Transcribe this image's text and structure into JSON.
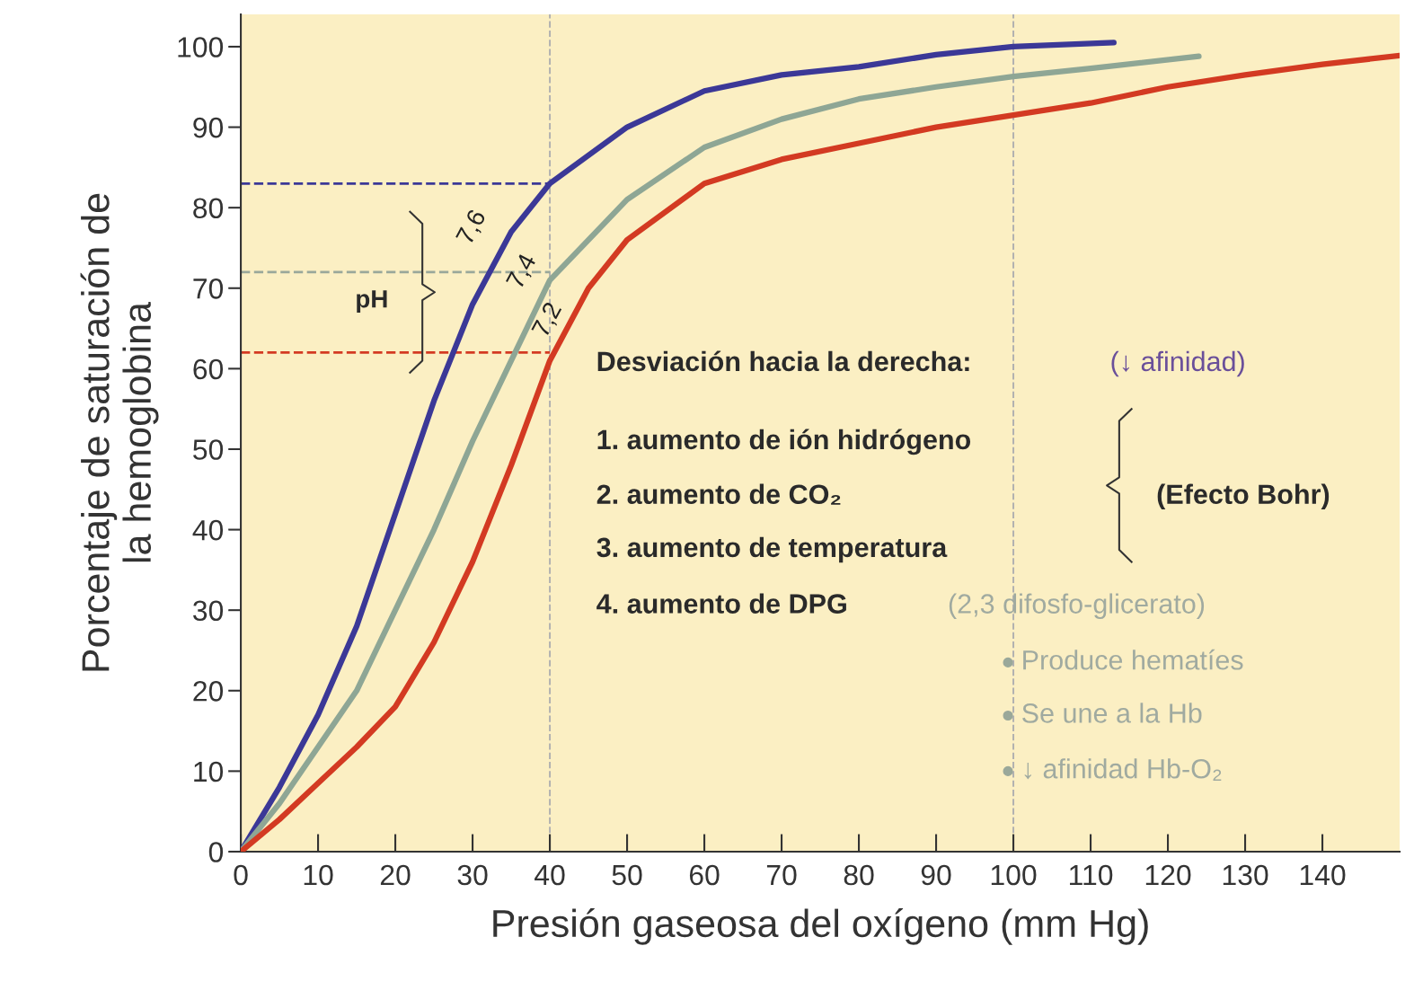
{
  "chart_data": {
    "type": "line",
    "xlabel": "Presión gaseosa del oxígeno (mm Hg)",
    "ylabel": "Porcentaje de saturación de\nla hemoglobina",
    "xlim": [
      0,
      150
    ],
    "ylim": [
      0,
      104
    ],
    "xticks": [
      0,
      10,
      20,
      30,
      40,
      50,
      60,
      70,
      80,
      90,
      100,
      110,
      120,
      130,
      140
    ],
    "yticks": [
      0,
      10,
      20,
      30,
      40,
      50,
      60,
      70,
      80,
      90,
      100
    ],
    "grid": false,
    "legend": false,
    "marker": "none",
    "line_style": "solid",
    "series": [
      {
        "name": "7,6",
        "color": "#3b3897",
        "x": [
          0,
          5,
          10,
          15,
          20,
          25,
          30,
          35,
          40,
          50,
          60,
          70,
          80,
          90,
          100,
          113
        ],
        "values": [
          0,
          8,
          17,
          28,
          42,
          56,
          68,
          77,
          83,
          90,
          94.5,
          96.5,
          97.5,
          99,
          100,
          100.5
        ]
      },
      {
        "name": "7,4",
        "color": "#8ea695",
        "x": [
          0,
          5,
          10,
          15,
          20,
          25,
          30,
          35,
          40,
          50,
          60,
          70,
          80,
          90,
          100,
          110,
          124
        ],
        "values": [
          0,
          6,
          13,
          20,
          30,
          40,
          51,
          61,
          71,
          81,
          87.5,
          91,
          93.5,
          95,
          96.3,
          97.3,
          98.8
        ]
      },
      {
        "name": "7,2",
        "color": "#d33a22",
        "x": [
          0,
          5,
          10,
          15,
          20,
          25,
          30,
          35,
          40,
          45,
          50,
          60,
          70,
          80,
          90,
          100,
          110,
          120,
          130,
          140,
          150
        ],
        "values": [
          0,
          4,
          8.5,
          13,
          18,
          26,
          36,
          48,
          61,
          70,
          76,
          83,
          86,
          88,
          90,
          91.5,
          93,
          95,
          96.5,
          97.8,
          98.9
        ]
      }
    ],
    "ref_lines": [
      {
        "axis": "x",
        "value": 40,
        "color": "#b0b0b0",
        "line_style": "dashed"
      },
      {
        "axis": "x",
        "value": 100,
        "color": "#b0b0b0",
        "line_style": "dashed"
      },
      {
        "axis": "y",
        "value": 83,
        "color": "#3b3897",
        "line_style": "dashed"
      },
      {
        "axis": "y",
        "value": 72,
        "color": "#9aa89a",
        "line_style": "dashed"
      },
      {
        "axis": "y",
        "value": 62,
        "color": "#d33a22",
        "line_style": "dashed"
      }
    ],
    "annotations": [
      "pH",
      "Desviación hacia la derecha:",
      "(↓ afinidad)",
      "1. aumento de ión hidrógeno",
      "2. aumento de CO₂",
      "3. aumento de temperatura",
      "4. aumento de DPG",
      "(2,3 difosfo-glicerato)",
      "(Efecto Bohr)",
      "Produce hematíes",
      "Se une a la Hb",
      "↓ afinidad Hb-O₂"
    ]
  }
}
